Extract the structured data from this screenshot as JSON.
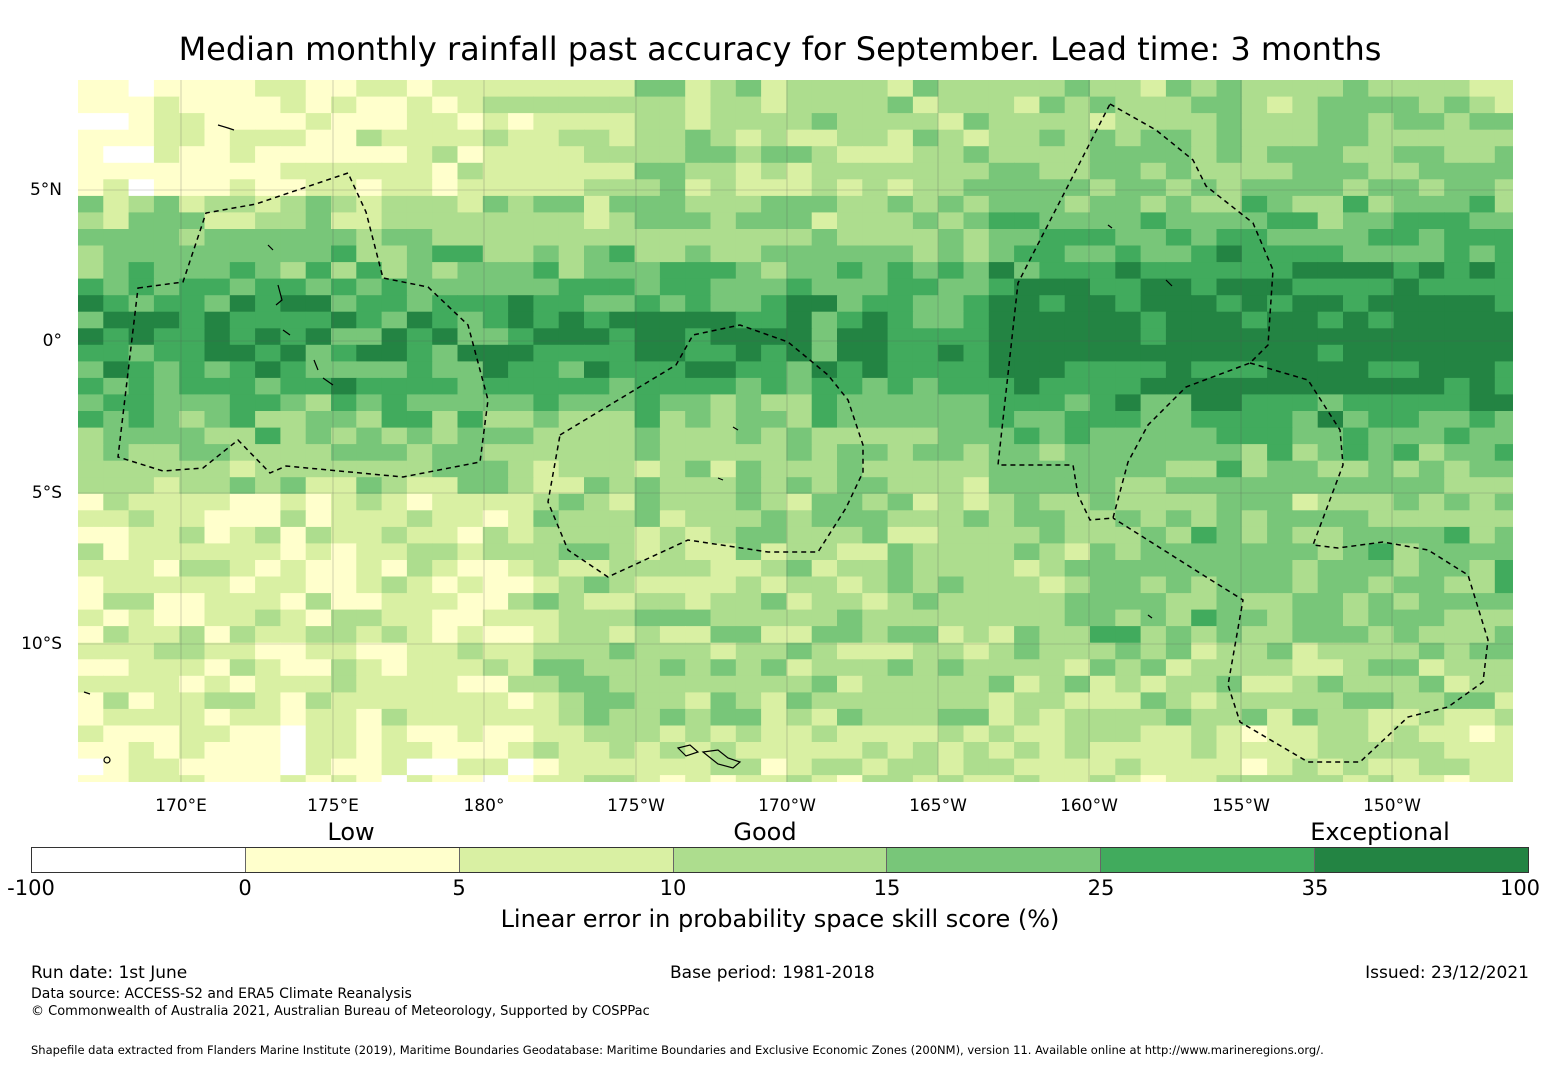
{
  "title": "Median monthly rainfall past accuracy for September. Lead time: 3 months",
  "map": {
    "lon_labels": [
      "170°E",
      "175°E",
      "180°",
      "175°W",
      "170°W",
      "165°W",
      "160°W",
      "155°W",
      "150°W"
    ],
    "lat_labels": [
      "5°N",
      "0°",
      "5°S",
      "10°S"
    ]
  },
  "legend": {
    "categories": [
      "Low",
      "Good",
      "Exceptional"
    ],
    "ticks": [
      "-100",
      "0",
      "5",
      "10",
      "15",
      "25",
      "35",
      "100"
    ],
    "bin_colors": [
      "#ffffff",
      "#ffffcc",
      "#d9f0a3",
      "#addd8e",
      "#78c679",
      "#41ab5d",
      "#238443"
    ],
    "label": "Linear error in probability space skill score (%)"
  },
  "footer": {
    "run_date": "Run date: 1st June",
    "base_period": "Base period: 1981-2018",
    "issued": "Issued: 23/12/2021",
    "data_source": "Data source: ACCESS-S2 and ERA5 Climate Reanalysis",
    "copyright": "© Commonwealth of Australia 2021, Australian Bureau of Meteorology, Supported by COSPPac",
    "shapefile": "Shapefile data extracted from Flanders Marine Institute (2019), Maritime Boundaries Geodatabase: Maritime Boundaries and Exclusive Economic Zones (200NM), version 11. Available online at http://www.marineregions.org/."
  }
}
